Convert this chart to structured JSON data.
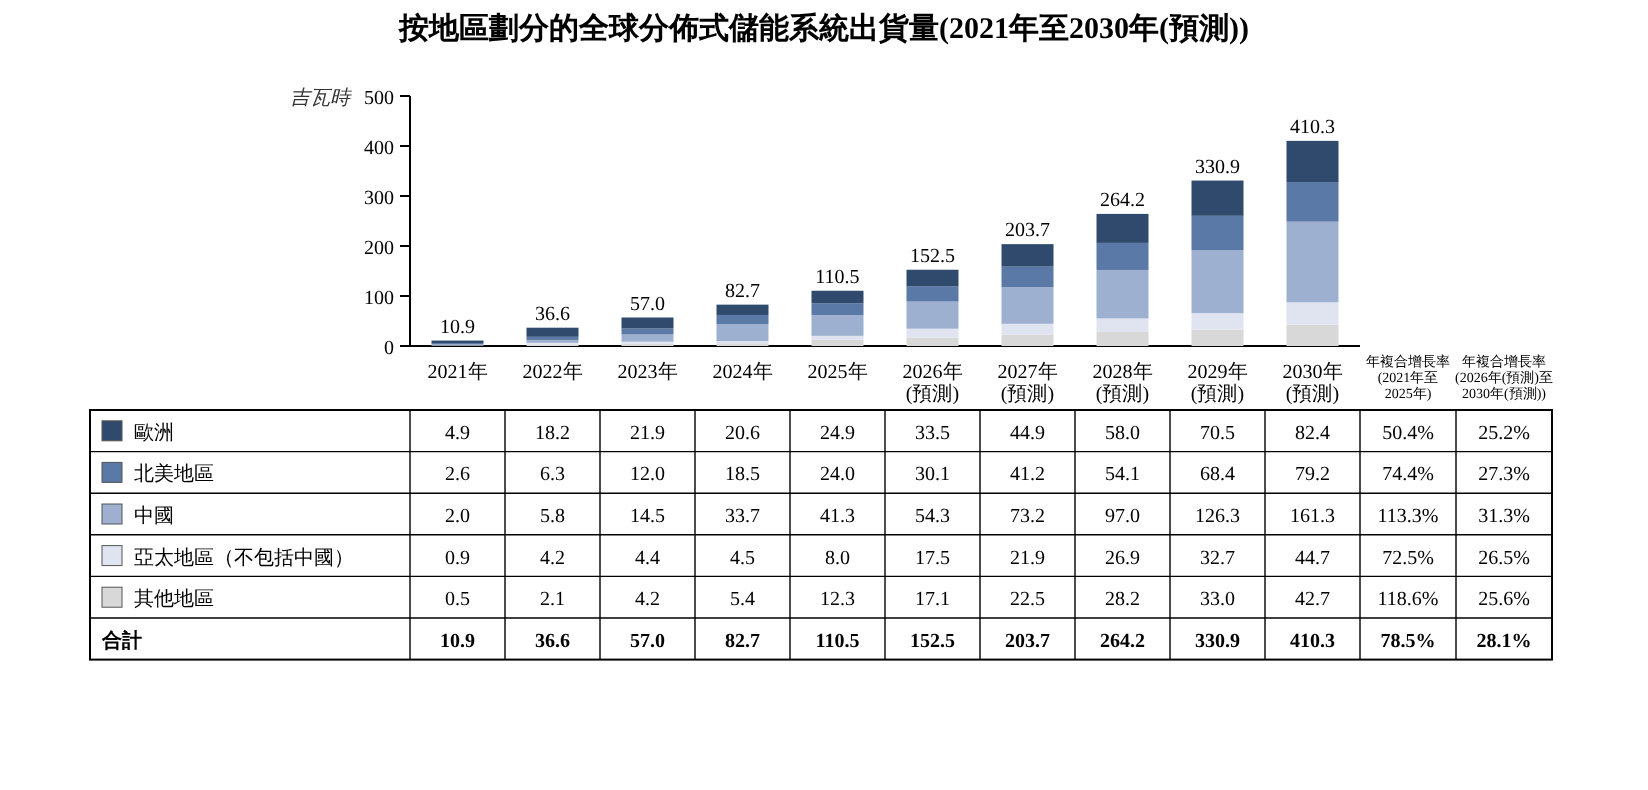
{
  "chart_data": {
    "type": "bar",
    "stacked": true,
    "title": "按地區劃分的全球分佈式儲能系統出貨量(2021年至2030年(預測))",
    "ylabel": "吉瓦時",
    "categories": [
      "2021年",
      "2022年",
      "2023年",
      "2024年",
      "2025年",
      "2026年\n(預測)",
      "2027年\n(預測)",
      "2028年\n(預測)",
      "2029年\n(預測)",
      "2030年\n(預測)"
    ],
    "series": [
      {
        "name": "其他地區",
        "color": "#d8d8d8",
        "values": [
          0.5,
          2.1,
          4.2,
          5.4,
          12.3,
          17.1,
          22.5,
          28.2,
          33.0,
          42.7
        ],
        "value_labels": [
          "0.5",
          "2.1",
          "4.2",
          "5.4",
          "12.3",
          "17.1",
          "22.5",
          "28.2",
          "33.0",
          "42.7"
        ]
      },
      {
        "name": "亞太地區（不包括中國）",
        "color": "#dfe4f0",
        "values": [
          0.9,
          4.2,
          4.4,
          4.5,
          8.0,
          17.5,
          21.9,
          26.9,
          32.7,
          44.7
        ],
        "value_labels": [
          "0.9",
          "4.2",
          "4.4",
          "4.5",
          "8.0",
          "17.5",
          "21.9",
          "26.9",
          "32.7",
          "44.7"
        ]
      },
      {
        "name": "中國",
        "color": "#9db0d0",
        "values": [
          2.0,
          5.8,
          14.5,
          33.7,
          41.3,
          54.3,
          73.2,
          97.0,
          126.3,
          161.3
        ],
        "value_labels": [
          "2.0",
          "5.8",
          "14.5",
          "33.7",
          "41.3",
          "54.3",
          "73.2",
          "97.0",
          "126.3",
          "161.3"
        ]
      },
      {
        "name": "北美地區",
        "color": "#5b79a6",
        "values": [
          2.6,
          6.3,
          12.0,
          18.5,
          24.0,
          30.1,
          41.2,
          54.1,
          68.4,
          79.2
        ],
        "value_labels": [
          "2.6",
          "6.3",
          "12.0",
          "18.5",
          "24.0",
          "30.1",
          "41.2",
          "54.1",
          "68.4",
          "79.2"
        ]
      },
      {
        "name": "歐洲",
        "color": "#2f4a6d",
        "values": [
          4.9,
          18.2,
          21.9,
          20.6,
          24.9,
          33.5,
          44.9,
          58.0,
          70.5,
          82.4
        ],
        "value_labels": [
          "4.9",
          "18.2",
          "21.9",
          "20.6",
          "24.9",
          "33.5",
          "44.9",
          "58.0",
          "70.5",
          "82.4"
        ]
      }
    ],
    "totals": [
      "10.9",
      "36.6",
      "57.0",
      "82.7",
      "110.5",
      "152.5",
      "203.7",
      "264.2",
      "330.9",
      "410.3"
    ],
    "ylim": [
      0,
      500
    ],
    "yticks": [
      0,
      100,
      200,
      300,
      400,
      500
    ],
    "legend": "bottom",
    "annotations": [
      "合計",
      "年複合增長率\n(2021年至\n2025年)",
      "年複合增長率\n(2026年(預測)至\n2030年(預測))",
      "50.4%",
      "25.2%",
      "74.4%",
      "27.3%",
      "113.3%",
      "31.3%",
      "72.5%",
      "26.5%",
      "118.6%",
      "25.6%",
      "78.5%",
      "28.1%"
    ]
  }
}
